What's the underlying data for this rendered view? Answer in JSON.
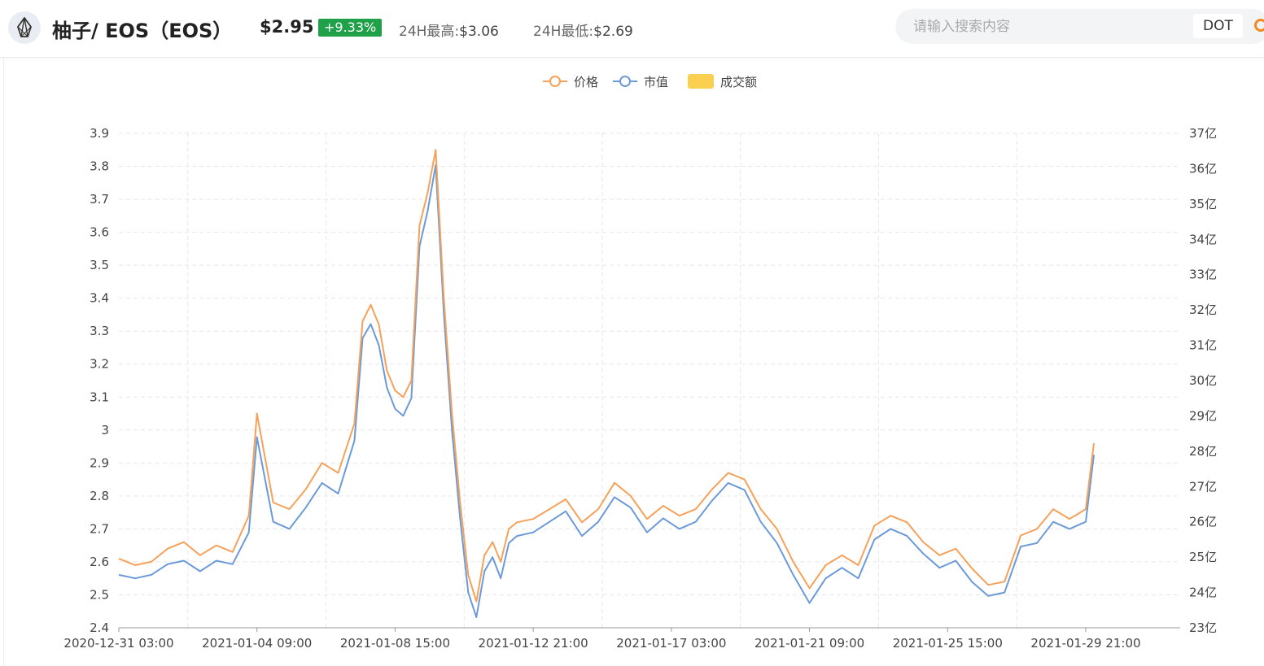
{
  "header": {
    "coin_logo_icon": "eos-logo-icon",
    "title": "柚子/ EOS（EOS）",
    "price": "$2.95",
    "change": "+9.33%",
    "change_color": "#1fa14a",
    "high_label": "24H最高:",
    "high_value": "$3.06",
    "low_label": "24H最低:",
    "low_value": "$2.69"
  },
  "search": {
    "placeholder": "请输入搜索内容",
    "tag": "DOT",
    "icon": "search-icon",
    "icon_color": "#f08a24"
  },
  "chart_data": {
    "type": "line",
    "legend": [
      {
        "name": "价格",
        "color": "#f5a15a",
        "marker": "line-circle"
      },
      {
        "name": "市值",
        "color": "#6c9ad9",
        "marker": "line-circle"
      },
      {
        "name": "成交额",
        "color": "#fbcf4f",
        "marker": "rect"
      }
    ],
    "legend_position": "top-center",
    "x_ticks": [
      "2020-12-31 03:00",
      "2021-01-04 09:00",
      "2021-01-08 15:00",
      "2021-01-12 21:00",
      "2021-01-17 03:00",
      "2021-01-21 09:00",
      "2021-01-25 15:00",
      "2021-01-29 21:00"
    ],
    "y_left": {
      "min": 2.4,
      "max": 3.9,
      "ticks": [
        "2.4",
        "2.5",
        "2.6",
        "2.7",
        "2.8",
        "2.9",
        "3",
        "3.1",
        "3.2",
        "3.3",
        "3.4",
        "3.5",
        "3.6",
        "3.7",
        "3.8",
        "3.9"
      ]
    },
    "y_right": {
      "min": 23,
      "max": 37,
      "unit": "亿",
      "ticks": [
        "23亿",
        "24亿",
        "25亿",
        "26亿",
        "27亿",
        "28亿",
        "29亿",
        "30亿",
        "31亿",
        "32亿",
        "33亿",
        "34亿",
        "35亿",
        "36亿",
        "37亿"
      ]
    },
    "grid": true,
    "series": [
      {
        "name": "价格",
        "x": [
          "2020-12-31 03:00",
          "2020-12-31 15:00",
          "2021-01-01 03:00",
          "2021-01-01 15:00",
          "2021-01-02 03:00",
          "2021-01-02 15:00",
          "2021-01-03 03:00",
          "2021-01-03 15:00",
          "2021-01-04 03:00",
          "2021-01-04 09:00",
          "2021-01-04 21:00",
          "2021-01-05 09:00",
          "2021-01-05 21:00",
          "2021-01-06 09:00",
          "2021-01-06 21:00",
          "2021-01-07 09:00",
          "2021-01-07 15:00",
          "2021-01-07 21:00",
          "2021-01-08 03:00",
          "2021-01-08 09:00",
          "2021-01-08 15:00",
          "2021-01-08 21:00",
          "2021-01-09 03:00",
          "2021-01-09 09:00",
          "2021-01-09 15:00",
          "2021-01-09 21:00",
          "2021-01-10 03:00",
          "2021-01-10 09:00",
          "2021-01-10 15:00",
          "2021-01-10 21:00",
          "2021-01-11 03:00",
          "2021-01-11 09:00",
          "2021-01-11 15:00",
          "2021-01-11 21:00",
          "2021-01-12 03:00",
          "2021-01-12 09:00",
          "2021-01-12 21:00",
          "2021-01-13 09:00",
          "2021-01-13 21:00",
          "2021-01-14 09:00",
          "2021-01-14 21:00",
          "2021-01-15 09:00",
          "2021-01-15 21:00",
          "2021-01-16 09:00",
          "2021-01-16 21:00",
          "2021-01-17 09:00",
          "2021-01-17 21:00",
          "2021-01-18 09:00",
          "2021-01-18 21:00",
          "2021-01-19 09:00",
          "2021-01-19 21:00",
          "2021-01-20 09:00",
          "2021-01-20 21:00",
          "2021-01-21 09:00",
          "2021-01-21 21:00",
          "2021-01-22 09:00",
          "2021-01-22 21:00",
          "2021-01-23 09:00",
          "2021-01-23 21:00",
          "2021-01-24 09:00",
          "2021-01-24 21:00",
          "2021-01-25 09:00",
          "2021-01-25 21:00",
          "2021-01-26 09:00",
          "2021-01-26 21:00",
          "2021-01-27 09:00",
          "2021-01-27 21:00",
          "2021-01-28 09:00",
          "2021-01-28 21:00",
          "2021-01-29 09:00",
          "2021-01-29 21:00",
          "2021-01-30 03:00"
        ],
        "values": [
          2.61,
          2.59,
          2.6,
          2.64,
          2.66,
          2.62,
          2.65,
          2.63,
          2.74,
          3.05,
          2.78,
          2.76,
          2.82,
          2.9,
          2.87,
          3.02,
          3.33,
          3.38,
          3.32,
          3.18,
          3.12,
          3.1,
          3.15,
          3.62,
          3.72,
          3.85,
          3.4,
          3.05,
          2.78,
          2.56,
          2.48,
          2.62,
          2.66,
          2.6,
          2.7,
          2.72,
          2.73,
          2.76,
          2.79,
          2.72,
          2.76,
          2.84,
          2.8,
          2.73,
          2.77,
          2.74,
          2.76,
          2.82,
          2.87,
          2.85,
          2.76,
          2.7,
          2.6,
          2.52,
          2.59,
          2.62,
          2.59,
          2.71,
          2.74,
          2.72,
          2.66,
          2.62,
          2.64,
          2.58,
          2.53,
          2.54,
          2.68,
          2.7,
          2.76,
          2.73,
          2.76,
          2.96
        ]
      },
      {
        "name": "市值",
        "x": [
          "2020-12-31 03:00",
          "2020-12-31 15:00",
          "2021-01-01 03:00",
          "2021-01-01 15:00",
          "2021-01-02 03:00",
          "2021-01-02 15:00",
          "2021-01-03 03:00",
          "2021-01-03 15:00",
          "2021-01-04 03:00",
          "2021-01-04 09:00",
          "2021-01-04 21:00",
          "2021-01-05 09:00",
          "2021-01-05 21:00",
          "2021-01-06 09:00",
          "2021-01-06 21:00",
          "2021-01-07 09:00",
          "2021-01-07 15:00",
          "2021-01-07 21:00",
          "2021-01-08 03:00",
          "2021-01-08 09:00",
          "2021-01-08 15:00",
          "2021-01-08 21:00",
          "2021-01-09 03:00",
          "2021-01-09 09:00",
          "2021-01-09 15:00",
          "2021-01-09 21:00",
          "2021-01-10 03:00",
          "2021-01-10 09:00",
          "2021-01-10 15:00",
          "2021-01-10 21:00",
          "2021-01-11 03:00",
          "2021-01-11 09:00",
          "2021-01-11 15:00",
          "2021-01-11 21:00",
          "2021-01-12 03:00",
          "2021-01-12 09:00",
          "2021-01-12 21:00",
          "2021-01-13 09:00",
          "2021-01-13 21:00",
          "2021-01-14 09:00",
          "2021-01-14 21:00",
          "2021-01-15 09:00",
          "2021-01-15 21:00",
          "2021-01-16 09:00",
          "2021-01-16 21:00",
          "2021-01-17 09:00",
          "2021-01-17 21:00",
          "2021-01-18 09:00",
          "2021-01-18 21:00",
          "2021-01-19 09:00",
          "2021-01-19 21:00",
          "2021-01-20 09:00",
          "2021-01-20 21:00",
          "2021-01-21 09:00",
          "2021-01-21 21:00",
          "2021-01-22 09:00",
          "2021-01-22 21:00",
          "2021-01-23 09:00",
          "2021-01-23 21:00",
          "2021-01-24 09:00",
          "2021-01-24 21:00",
          "2021-01-25 09:00",
          "2021-01-25 21:00",
          "2021-01-26 09:00",
          "2021-01-26 21:00",
          "2021-01-27 09:00",
          "2021-01-27 21:00",
          "2021-01-28 09:00",
          "2021-01-28 21:00",
          "2021-01-29 09:00",
          "2021-01-29 21:00",
          "2021-01-30 03:00"
        ],
        "values": [
          24.5,
          24.4,
          24.5,
          24.8,
          24.9,
          24.6,
          24.9,
          24.8,
          25.7,
          28.4,
          26.0,
          25.8,
          26.4,
          27.1,
          26.8,
          28.3,
          31.2,
          31.6,
          31.0,
          29.8,
          29.2,
          29.0,
          29.5,
          33.8,
          34.8,
          36.1,
          31.9,
          28.6,
          26.1,
          24.0,
          23.3,
          24.6,
          25.0,
          24.4,
          25.4,
          25.6,
          25.7,
          26.0,
          26.3,
          25.6,
          26.0,
          26.7,
          26.4,
          25.7,
          26.1,
          25.8,
          26.0,
          26.6,
          27.1,
          26.9,
          26.0,
          25.4,
          24.5,
          23.7,
          24.4,
          24.7,
          24.4,
          25.5,
          25.8,
          25.6,
          25.1,
          24.7,
          24.9,
          24.3,
          23.9,
          24.0,
          25.3,
          25.4,
          26.0,
          25.8,
          26.0,
          27.9
        ]
      }
    ]
  }
}
